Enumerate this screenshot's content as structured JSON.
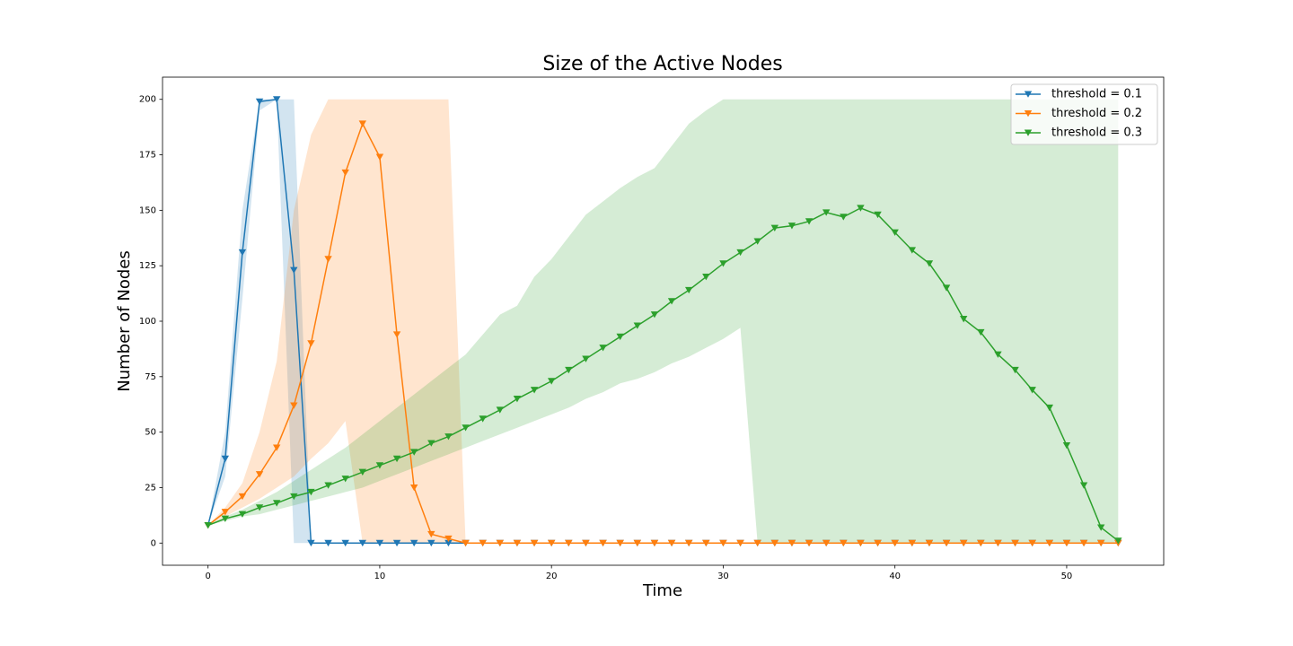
{
  "chart_data": {
    "type": "line",
    "title": "Size of the Active Nodes",
    "x_label": "Time",
    "y_label": "Number of Nodes",
    "x": [
      0,
      1,
      2,
      3,
      4,
      5,
      6,
      7,
      8,
      9,
      10,
      11,
      12,
      13,
      14,
      15,
      16,
      17,
      18,
      19,
      20,
      21,
      22,
      23,
      24,
      25,
      26,
      27,
      28,
      29,
      30,
      31,
      32,
      33,
      34,
      35,
      36,
      37,
      38,
      39,
      40,
      41,
      42,
      43,
      44,
      45,
      46,
      47,
      48,
      49,
      50,
      51,
      52,
      53
    ],
    "xlim": [
      -2.65,
      55.65
    ],
    "xticks": [
      0,
      10,
      20,
      30,
      40,
      50
    ],
    "ylim": [
      -10,
      210
    ],
    "yticks": [
      0,
      25,
      50,
      75,
      100,
      125,
      150,
      175,
      200
    ],
    "legend": "upper right",
    "band_opacity": 0.2,
    "series": [
      {
        "name": "threshold = 0.1",
        "color": "#1f77b4",
        "values": [
          8,
          38,
          131,
          199,
          200,
          123,
          0,
          0,
          0,
          0,
          0,
          0,
          0,
          0,
          0,
          0,
          0,
          0,
          0,
          0,
          0,
          0,
          0,
          0,
          0,
          0,
          0,
          0,
          0,
          0,
          0,
          0,
          0,
          0,
          0,
          0,
          0,
          0,
          0,
          0,
          0,
          0,
          0,
          0,
          0,
          0,
          0,
          0,
          0,
          0,
          0,
          0,
          0,
          0
        ],
        "lower": [
          8,
          30,
          110,
          195,
          200,
          0,
          0,
          0,
          0,
          0,
          0,
          0,
          0,
          0,
          0,
          0,
          0,
          0,
          0,
          0,
          0,
          0,
          0,
          0,
          0,
          0,
          0,
          0,
          0,
          0,
          0,
          0,
          0,
          0,
          0,
          0,
          0,
          0,
          0,
          0,
          0,
          0,
          0,
          0,
          0,
          0,
          0,
          0,
          0,
          0,
          0,
          0,
          0,
          0
        ],
        "upper": [
          8,
          50,
          150,
          200,
          200,
          200,
          0,
          0,
          0,
          0,
          0,
          0,
          0,
          0,
          0,
          0,
          0,
          0,
          0,
          0,
          0,
          0,
          0,
          0,
          0,
          0,
          0,
          0,
          0,
          0,
          0,
          0,
          0,
          0,
          0,
          0,
          0,
          0,
          0,
          0,
          0,
          0,
          0,
          0,
          0,
          0,
          0,
          0,
          0,
          0,
          0,
          0,
          0,
          0
        ]
      },
      {
        "name": "threshold = 0.2",
        "color": "#ff7f0e",
        "values": [
          8,
          14,
          21,
          31,
          43,
          62,
          90,
          128,
          167,
          189,
          174,
          94,
          25,
          4,
          2,
          0,
          0,
          0,
          0,
          0,
          0,
          0,
          0,
          0,
          0,
          0,
          0,
          0,
          0,
          0,
          0,
          0,
          0,
          0,
          0,
          0,
          0,
          0,
          0,
          0,
          0,
          0,
          0,
          0,
          0,
          0,
          0,
          0,
          0,
          0,
          0,
          0,
          0,
          0
        ],
        "lower": [
          8,
          12,
          16,
          20,
          25,
          30,
          38,
          45,
          55,
          0,
          0,
          0,
          0,
          0,
          0,
          0,
          0,
          0,
          0,
          0,
          0,
          0,
          0,
          0,
          0,
          0,
          0,
          0,
          0,
          0,
          0,
          0,
          0,
          0,
          0,
          0,
          0,
          0,
          0,
          0,
          0,
          0,
          0,
          0,
          0,
          0,
          0,
          0,
          0,
          0,
          0,
          0,
          0,
          0
        ],
        "upper": [
          8,
          16,
          27,
          50,
          82,
          150,
          184,
          200,
          200,
          200,
          200,
          200,
          200,
          200,
          200,
          0,
          0,
          0,
          0,
          0,
          0,
          0,
          0,
          0,
          0,
          0,
          0,
          0,
          0,
          0,
          0,
          0,
          0,
          0,
          0,
          0,
          0,
          0,
          0,
          0,
          0,
          0,
          0,
          0,
          0,
          0,
          0,
          0,
          0,
          0,
          0,
          0,
          0,
          0
        ]
      },
      {
        "name": "threshold = 0.3",
        "color": "#2ca02c",
        "values": [
          8,
          11,
          13,
          16,
          18,
          21,
          23,
          26,
          29,
          32,
          35,
          38,
          41,
          45,
          48,
          52,
          56,
          60,
          65,
          69,
          73,
          78,
          83,
          88,
          93,
          98,
          103,
          109,
          114,
          120,
          126,
          131,
          136,
          142,
          143,
          145,
          149,
          147,
          151,
          148,
          140,
          132,
          126,
          115,
          101,
          95,
          85,
          78,
          69,
          61,
          44,
          26,
          7,
          1
        ],
        "lower": [
          8,
          10,
          12,
          13,
          15,
          17,
          19,
          21,
          23,
          25,
          28,
          31,
          34,
          37,
          40,
          43,
          46,
          49,
          52,
          55,
          58,
          61,
          65,
          68,
          72,
          74,
          77,
          81,
          84,
          88,
          92,
          97,
          0,
          0,
          0,
          0,
          0,
          0,
          0,
          0,
          0,
          0,
          0,
          0,
          0,
          0,
          0,
          0,
          0,
          0,
          0,
          0,
          0,
          0
        ],
        "upper": [
          8,
          12,
          15,
          19,
          23,
          28,
          33,
          38,
          43,
          49,
          55,
          61,
          67,
          73,
          79,
          85,
          94,
          103,
          107,
          120,
          128,
          138,
          148,
          154,
          160,
          165,
          169,
          179,
          189,
          195,
          200,
          200,
          200,
          200,
          200,
          200,
          200,
          200,
          200,
          200,
          200,
          200,
          200,
          200,
          200,
          200,
          200,
          200,
          200,
          200,
          200,
          200,
          200,
          200
        ]
      }
    ]
  }
}
